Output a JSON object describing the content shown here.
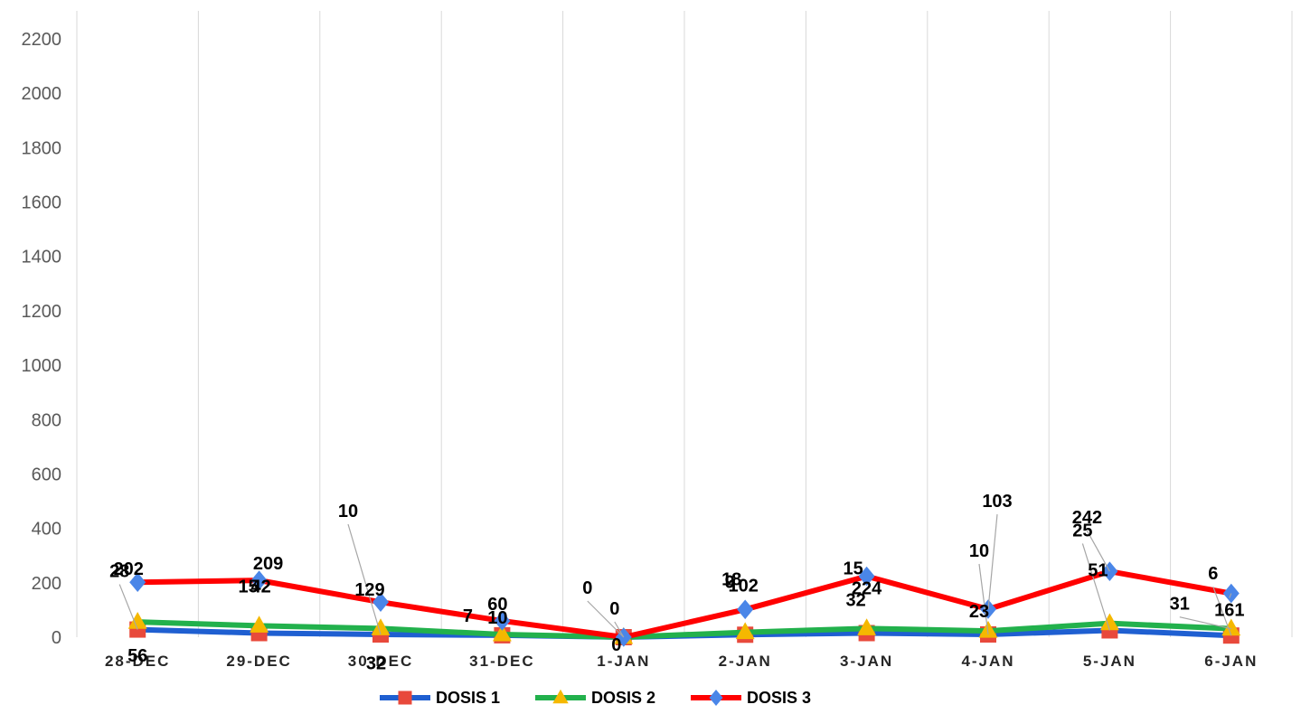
{
  "chart_data": {
    "type": "line",
    "categories": [
      "28-DEC",
      "29-DEC",
      "30-DEC",
      "31-DEC",
      "1-JAN",
      "2-JAN",
      "3-JAN",
      "4-JAN",
      "5-JAN",
      "6-JAN"
    ],
    "ylim": [
      0,
      2200
    ],
    "yticks": [
      0,
      200,
      400,
      600,
      800,
      1000,
      1200,
      1400,
      1600,
      1800,
      2000,
      2200
    ],
    "grid": {
      "vertical": true,
      "horizontal": false
    },
    "legend": "bottom",
    "series": [
      {
        "name": "DOSIS 1",
        "values": [
          28,
          15,
          10,
          7,
          0,
          9,
          15,
          10,
          25,
          6
        ],
        "line_color": "#1f5fd1",
        "marker": "square",
        "marker_color": "#e8493b"
      },
      {
        "name": "DOSIS 2",
        "values": [
          56,
          42,
          32,
          10,
          0,
          18,
          32,
          23,
          51,
          31
        ],
        "line_color": "#22b14c",
        "marker": "triangle",
        "marker_color": "#f5b800"
      },
      {
        "name": "DOSIS 3",
        "values": [
          202,
          209,
          129,
          60,
          0,
          102,
          224,
          103,
          242,
          161
        ],
        "line_color": "#ff0000",
        "marker": "diamond",
        "marker_color": "#4a86e8"
      }
    ]
  }
}
